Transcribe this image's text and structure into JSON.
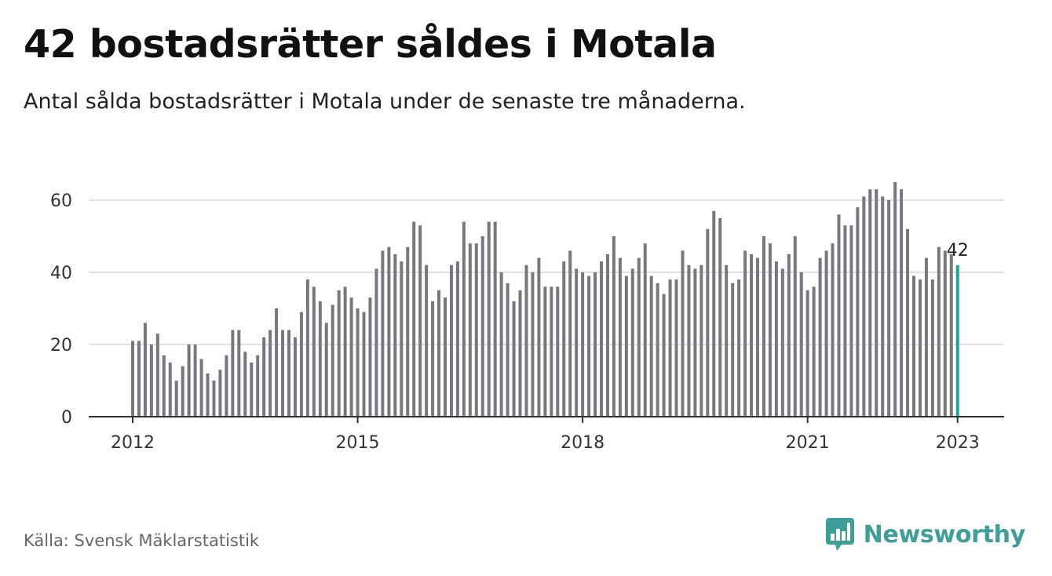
{
  "header": {
    "title": "42 bostadsrätter såldes i Motala",
    "subtitle": "Antal sålda bostadsrätter i Motala under de senaste tre månaderna."
  },
  "footer": {
    "source": "Källa: Svensk Mäklarstatistik",
    "brand": "Newsworthy",
    "brand_icon": "bar-chart-speech-bubble-icon"
  },
  "colors": {
    "bar": "#77777e",
    "highlight": "#21a59b",
    "grid": "#d9d9d9",
    "axis": "#333333",
    "brand": "#3e9e9a"
  },
  "chart_data": {
    "type": "bar",
    "title": "42 bostadsrätter såldes i Motala",
    "subtitle": "Antal sålda bostadsrätter i Motala under de senaste tre månaderna.",
    "start_period": "2012-01",
    "period": "month",
    "ylim": [
      0,
      70
    ],
    "yticks": [
      0,
      20,
      40,
      60
    ],
    "xticks": [
      "2012",
      "2015",
      "2018",
      "2021",
      "2023"
    ],
    "grid": true,
    "highlight_last": true,
    "value_label": "42",
    "values": [
      21,
      21,
      26,
      20,
      23,
      17,
      15,
      10,
      14,
      20,
      20,
      16,
      12,
      10,
      13,
      17,
      24,
      24,
      18,
      15,
      17,
      22,
      24,
      30,
      24,
      24,
      22,
      29,
      38,
      36,
      32,
      26,
      31,
      35,
      36,
      33,
      30,
      29,
      33,
      41,
      46,
      47,
      45,
      43,
      47,
      54,
      53,
      42,
      32,
      35,
      33,
      42,
      43,
      54,
      48,
      48,
      50,
      54,
      54,
      40,
      37,
      32,
      35,
      42,
      40,
      44,
      36,
      36,
      36,
      43,
      46,
      41,
      40,
      39,
      40,
      43,
      45,
      50,
      44,
      39,
      41,
      44,
      48,
      39,
      37,
      34,
      38,
      38,
      46,
      42,
      41,
      42,
      52,
      57,
      55,
      42,
      37,
      38,
      46,
      45,
      44,
      50,
      48,
      43,
      41,
      45,
      50,
      40,
      35,
      36,
      44,
      46,
      48,
      56,
      53,
      53,
      58,
      61,
      63,
      63,
      61,
      60,
      65,
      63,
      52,
      39,
      38,
      44,
      38,
      47,
      46,
      45,
      42
    ]
  }
}
